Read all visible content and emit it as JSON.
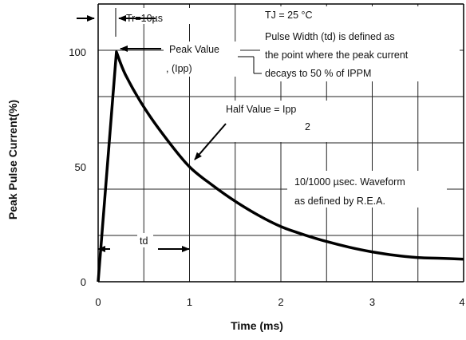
{
  "chart_data": {
    "type": "line",
    "xlabel": "Time (ms)",
    "ylabel": "Peak Pulse Current(%)",
    "xlim": [
      0,
      4
    ],
    "ylim": [
      0,
      100
    ],
    "grid": true,
    "x_ticks": [
      "0",
      "1",
      "2",
      "3",
      "4"
    ],
    "y_ticks": [
      {
        "value": 0,
        "label": "0"
      },
      {
        "value": 50,
        "label": "50"
      },
      {
        "value": 100,
        "label": "100"
      }
    ],
    "series": [
      {
        "x": [
          0,
          0.2,
          0.3,
          0.5,
          0.75,
          1.0,
          1.25,
          1.5,
          1.75,
          2.0,
          2.25,
          2.5,
          2.75,
          3.0,
          3.25,
          3.5,
          3.75,
          4.0
        ],
        "y": [
          0,
          100,
          90,
          76,
          62,
          50,
          42,
          35,
          29,
          24,
          20.5,
          17.5,
          15,
          13,
          11.5,
          10.5,
          10.2,
          9.8
        ]
      }
    ],
    "annotations": {
      "tr": "Tr=10µs",
      "tj": "TJ = 25 °C",
      "pulse_width": [
        "Pulse Width (td) is defined as",
        "the point where the peak current",
        "decays to 50 % of IPPM"
      ],
      "peak_value": [
        "Peak Value",
        ", (Ipp)"
      ],
      "half_value": [
        "Half Value = Ipp",
        "2"
      ],
      "waveform": [
        "10/1000 µsec. Waveform",
        "as defined by R.E.A."
      ],
      "td": "td"
    }
  }
}
